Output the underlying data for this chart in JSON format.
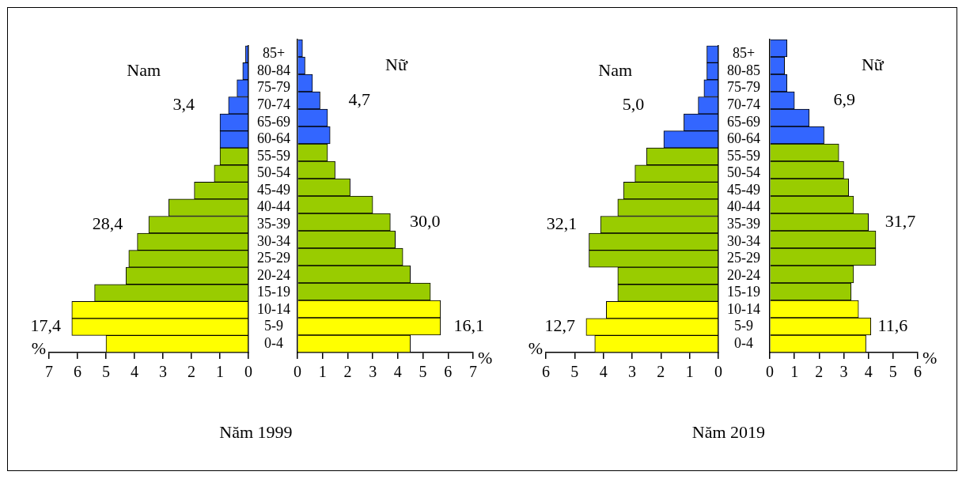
{
  "chart_data": [
    {
      "type": "bar",
      "orientation": "horizontal",
      "title": "Năm 1999",
      "xlabel": "%",
      "categories": [
        "85+",
        "80-84",
        "75-79",
        "70-74",
        "65-69",
        "60-64",
        "55-59",
        "50-54",
        "45-49",
        "40-44",
        "35-39",
        "30-34",
        "25-29",
        "20-24",
        "15-19",
        "10-14",
        "5-9",
        "0-4"
      ],
      "values": [
        0.1,
        0.2,
        0.4,
        0.7,
        1.0,
        1.0,
        1.0,
        1.2,
        1.9,
        2.8,
        3.5,
        3.9,
        4.2,
        4.3,
        5.4,
        6.2,
        6.2,
        5.0
      ],
      "colors": [
        "#3366ff",
        "#3366ff",
        "#3366ff",
        "#3366ff",
        "#3366ff",
        "#3366ff",
        "#99cc00",
        "#99cc00",
        "#99cc00",
        "#99cc00",
        "#99cc00",
        "#99cc00",
        "#99cc00",
        "#99cc00",
        "#99cc00",
        "#ffff00",
        "#ffff00",
        "#ffff00"
      ],
      "xlim": [
        7,
        0
      ],
      "xticks": [
        7,
        6,
        5,
        4,
        3,
        2,
        1,
        0
      ],
      "annotations": [
        "Nam",
        "3,4",
        "28,4",
        "17,4"
      ]
    },
    {
      "type": "bar",
      "orientation": "horizontal",
      "xlabel": "%",
      "tick_labels": "x",
      "values": [
        0.2,
        0.3,
        0.6,
        0.9,
        1.2,
        1.3,
        1.2,
        1.5,
        2.1,
        3.0,
        3.7,
        3.9,
        4.2,
        4.5,
        5.3,
        5.7,
        5.7,
        4.5
      ],
      "colors": [
        "#3366ff",
        "#3366ff",
        "#3366ff",
        "#3366ff",
        "#3366ff",
        "#3366ff",
        "#99cc00",
        "#99cc00",
        "#99cc00",
        "#99cc00",
        "#99cc00",
        "#99cc00",
        "#99cc00",
        "#99cc00",
        "#99cc00",
        "#ffff00",
        "#ffff00",
        "#ffff00"
      ],
      "xlim": [
        0,
        7
      ],
      "xticks": [
        0,
        1,
        2,
        3,
        4,
        5,
        6,
        7
      ],
      "annotations": [
        "Nữ",
        "4,7",
        "30,0",
        "16,1"
      ]
    },
    {
      "type": "bar",
      "orientation": "horizontal",
      "title": "Năm 2019",
      "xlabel": "%",
      "categories": [
        "85+",
        "80-85",
        "75-79",
        "70-74",
        "65-69",
        "60-64",
        "55-59",
        "50-54",
        "45-49",
        "40-44",
        "35-39",
        "30-34",
        "25-29",
        "20-24",
        "15-19",
        "10-14",
        "5-9",
        "0-4"
      ],
      "values": [
        0.4,
        0.4,
        0.5,
        0.7,
        1.2,
        1.9,
        2.5,
        2.9,
        3.3,
        3.5,
        4.1,
        4.5,
        4.5,
        3.5,
        3.5,
        3.9,
        4.6,
        4.3
      ],
      "colors": [
        "#3366ff",
        "#3366ff",
        "#3366ff",
        "#3366ff",
        "#3366ff",
        "#3366ff",
        "#99cc00",
        "#99cc00",
        "#99cc00",
        "#99cc00",
        "#99cc00",
        "#99cc00",
        "#99cc00",
        "#99cc00",
        "#99cc00",
        "#ffff00",
        "#ffff00",
        "#ffff00"
      ],
      "xlim": [
        6,
        0
      ],
      "xticks": [
        6,
        5,
        4,
        3,
        2,
        1,
        0
      ],
      "annotations": [
        "Nam",
        "5,0",
        "32,1",
        "12,7"
      ]
    },
    {
      "type": "bar",
      "orientation": "horizontal",
      "xlabel": "%",
      "tick_labels": "x",
      "values": [
        0.7,
        0.6,
        0.7,
        1.0,
        1.6,
        2.2,
        2.8,
        3.0,
        3.2,
        3.4,
        4.0,
        4.3,
        4.3,
        3.4,
        3.3,
        3.6,
        4.1,
        3.9
      ],
      "colors": [
        "#3366ff",
        "#3366ff",
        "#3366ff",
        "#3366ff",
        "#3366ff",
        "#3366ff",
        "#99cc00",
        "#99cc00",
        "#99cc00",
        "#99cc00",
        "#99cc00",
        "#99cc00",
        "#99cc00",
        "#99cc00",
        "#99cc00",
        "#ffff00",
        "#ffff00",
        "#ffff00"
      ],
      "xlim": [
        0,
        6
      ],
      "xticks": [
        0,
        1,
        2,
        3,
        4,
        5,
        6
      ],
      "annotations": [
        "Nữ",
        "6,9",
        "31,7",
        "11,6"
      ]
    }
  ]
}
